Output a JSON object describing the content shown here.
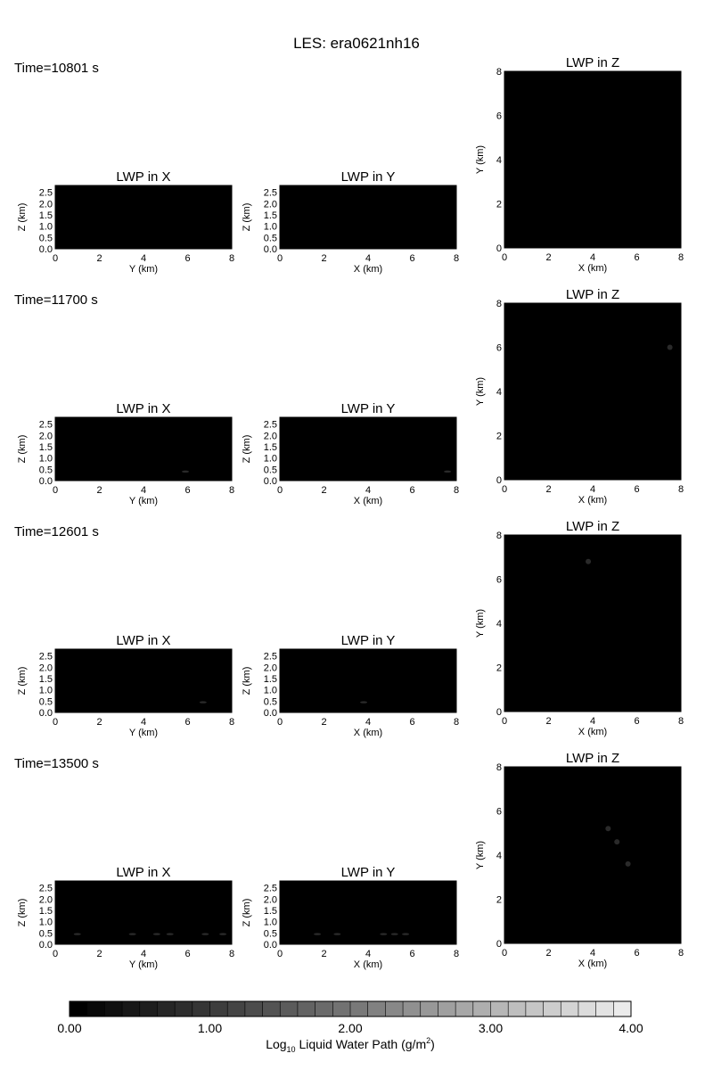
{
  "title": "LES: era0621nh16",
  "colors": {
    "background": "#000000",
    "frame": "#000000",
    "text": "#000000"
  },
  "chart_data": {
    "type": "heatmap",
    "title": "LES: era0621nh16",
    "panel_titles": {
      "x": "LWP in X",
      "y": "LWP in Y",
      "z": "LWP in Z"
    },
    "axes": {
      "x_panel": {
        "xlabel": "Y (km)",
        "ylabel": "Z (km)",
        "xlim": [
          0,
          8
        ],
        "ylim": [
          0,
          2.8
        ],
        "xticks": [
          "0",
          "2",
          "4",
          "6",
          "8"
        ],
        "yticks": [
          "0.0",
          "0.5",
          "1.0",
          "1.5",
          "2.0",
          "2.5"
        ]
      },
      "y_panel": {
        "xlabel": "X (km)",
        "ylabel": "Z (km)",
        "xlim": [
          0,
          8
        ],
        "ylim": [
          0,
          2.8
        ],
        "xticks": [
          "0",
          "2",
          "4",
          "6",
          "8"
        ],
        "yticks": [
          "0.0",
          "0.5",
          "1.0",
          "1.5",
          "2.0",
          "2.5"
        ]
      },
      "z_panel": {
        "xlabel": "X (km)",
        "ylabel": "Y (km)",
        "xlim": [
          0,
          8
        ],
        "ylim": [
          0,
          8
        ],
        "xticks": [
          "0",
          "2",
          "4",
          "6",
          "8"
        ],
        "yticks": [
          "0",
          "2",
          "4",
          "6",
          "8"
        ]
      }
    },
    "times": [
      {
        "label": "Time=10801 s",
        "x_features": [],
        "y_features": [],
        "z_features": []
      },
      {
        "label": "Time=11700 s",
        "x_features": [
          {
            "x": 5.9,
            "z": 0.4
          }
        ],
        "y_features": [
          {
            "x": 7.6,
            "z": 0.4
          }
        ],
        "z_features": [
          {
            "x": 7.5,
            "y": 6.0
          }
        ]
      },
      {
        "label": "Time=12601 s",
        "x_features": [
          {
            "x": 6.7,
            "z": 0.45
          }
        ],
        "y_features": [
          {
            "x": 3.8,
            "z": 0.45
          }
        ],
        "z_features": [
          {
            "x": 3.8,
            "y": 6.8
          }
        ]
      },
      {
        "label": "Time=13500 s",
        "x_features": [
          {
            "x": 1.0,
            "z": 0.45
          },
          {
            "x": 3.5,
            "z": 0.45
          },
          {
            "x": 4.6,
            "z": 0.45
          },
          {
            "x": 5.2,
            "z": 0.45
          },
          {
            "x": 6.8,
            "z": 0.45
          },
          {
            "x": 7.6,
            "z": 0.45
          }
        ],
        "y_features": [
          {
            "x": 1.7,
            "z": 0.45
          },
          {
            "x": 2.6,
            "z": 0.45
          },
          {
            "x": 4.7,
            "z": 0.45
          },
          {
            "x": 5.2,
            "z": 0.45
          },
          {
            "x": 5.7,
            "z": 0.45
          }
        ],
        "z_features": [
          {
            "x": 4.7,
            "y": 5.2
          },
          {
            "x": 5.1,
            "y": 4.6
          },
          {
            "x": 5.6,
            "y": 3.6
          }
        ]
      }
    ],
    "colorbar": {
      "label_main": "Log",
      "label_sub": "10",
      "label_rest": " Liquid Water Path (g/m",
      "label_sup": "2",
      "label_end": ")",
      "range": [
        0,
        4
      ],
      "ticks": [
        "0.00",
        "1.00",
        "2.00",
        "3.00",
        "4.00"
      ],
      "levels": 32,
      "colormap": "grayscale"
    }
  }
}
